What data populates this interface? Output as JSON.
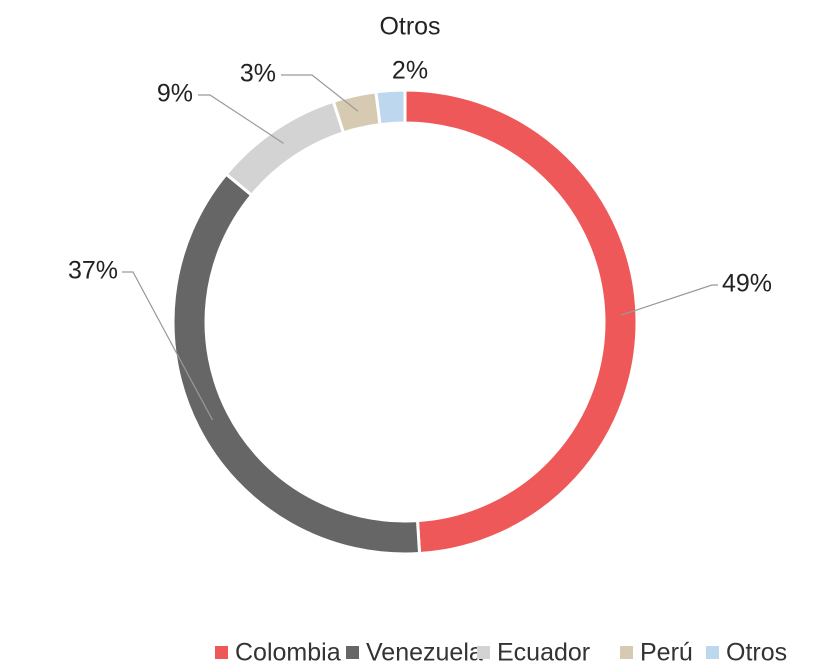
{
  "chart_data": {
    "type": "donut",
    "categories": [
      "Colombia",
      "Venezuela",
      "Ecuador",
      "Perú",
      "Otros"
    ],
    "values": [
      49,
      37,
      9,
      3,
      2
    ],
    "value_labels": [
      "49%",
      "37%",
      "9%",
      "3%",
      "2%"
    ],
    "colors": [
      "#ef5858",
      "#666666",
      "#d3d3d3",
      "#d6cbb2",
      "#bdd7ee"
    ],
    "legend": "bottom"
  }
}
